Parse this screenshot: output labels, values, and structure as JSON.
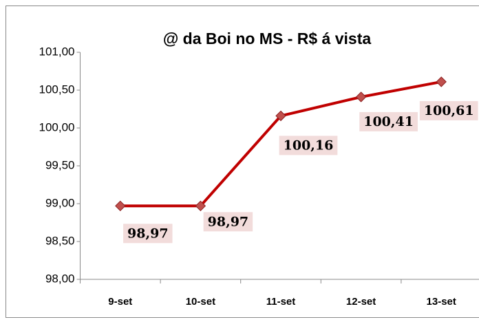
{
  "chart_data": {
    "type": "line",
    "title": "@ da Boi no MS - R$ á vista",
    "categories": [
      "9-set",
      "10-set",
      "11-set",
      "12-set",
      "13-set"
    ],
    "series": [
      {
        "name": "@ da Boi",
        "color": "#c00000",
        "marker_color": "#c0504d",
        "values": [
          98.97,
          98.97,
          100.16,
          100.41,
          100.61
        ],
        "value_labels": [
          "98,97",
          "98,97",
          "100,16",
          "100,41",
          "100,61"
        ]
      }
    ],
    "ylim": [
      98,
      101
    ],
    "yticks": [
      {
        "value": 98,
        "label": "98,00"
      },
      {
        "value": 98.5,
        "label": "98,50"
      },
      {
        "value": 99,
        "label": "99,00"
      },
      {
        "value": 99.5,
        "label": "99,50"
      },
      {
        "value": 100,
        "label": "100,00"
      },
      {
        "value": 100.5,
        "label": "100,50"
      },
      {
        "value": 101,
        "label": "101,00"
      }
    ],
    "grid": false
  }
}
